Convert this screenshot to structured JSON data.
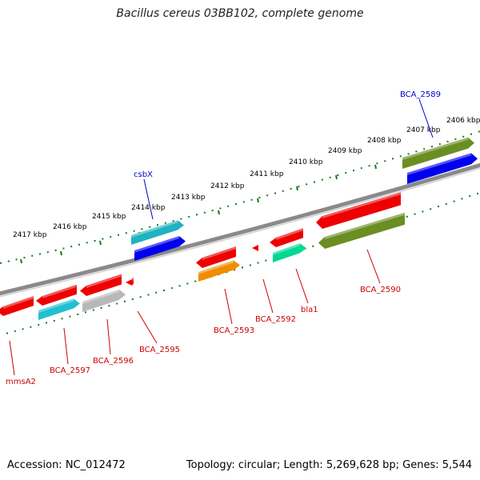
{
  "title": "Bacillus cereus 03BB102, complete genome",
  "footer": {
    "accession": "Accession: NC_012472",
    "summary": "Topology: circular; Length: 5,269,628 bp; Genes: 5,544"
  },
  "colors": {
    "backbone": "#8a8a8a",
    "tick": "#1a7a1a",
    "label_forward": "#0000cc",
    "label_reverse": "#cc0000"
  },
  "ticks": [
    "2406 kbp",
    "2407 kbp",
    "2408 kbp",
    "2409 kbp",
    "2410 kbp",
    "2411 kbp",
    "2412 kbp",
    "2413 kbp",
    "2414 kbp",
    "2415 kbp",
    "2416 kbp",
    "2417 kbp"
  ],
  "gene_labels": [
    {
      "name": "BCA_2589",
      "strand": "forward"
    },
    {
      "name": "csbX",
      "strand": "forward"
    },
    {
      "name": "BCA_2590",
      "strand": "reverse"
    },
    {
      "name": "bla1",
      "strand": "reverse"
    },
    {
      "name": "BCA_2592",
      "strand": "reverse"
    },
    {
      "name": "BCA_2593",
      "strand": "reverse"
    },
    {
      "name": "BCA_2595",
      "strand": "reverse"
    },
    {
      "name": "BCA_2596",
      "strand": "reverse"
    },
    {
      "name": "BCA_2597",
      "strand": "reverse"
    },
    {
      "name": "mmsA2",
      "strand": "reverse"
    }
  ],
  "features": [
    {
      "name": "forward-gene-bca2589",
      "color": "#6b8e23"
    },
    {
      "name": "forward-cds-bca2589",
      "color": "#0000ee"
    },
    {
      "name": "forward-gene-csbx",
      "color": "#20b2c0"
    },
    {
      "name": "forward-cds-csbx",
      "color": "#0000ee"
    },
    {
      "name": "reverse-gene-bca2590",
      "color": "#ee0000"
    },
    {
      "name": "reverse-cds-bca2590",
      "color": "#6b8e23"
    },
    {
      "name": "reverse-gene-bla1",
      "color": "#ee0000"
    },
    {
      "name": "reverse-cds-bla1",
      "color": "#00d890"
    },
    {
      "name": "reverse-gene-bca2592",
      "color": "#ee0000"
    },
    {
      "name": "reverse-gene-bca2593",
      "color": "#ee0000"
    },
    {
      "name": "reverse-cds-bca2593",
      "color": "#f08c00"
    },
    {
      "name": "reverse-gene-bca2595",
      "color": "#ee0000"
    },
    {
      "name": "reverse-gene-bca2596",
      "color": "#ee0000"
    },
    {
      "name": "reverse-cds-bca2596",
      "color": "#b8b8b8"
    },
    {
      "name": "reverse-gene-bca2597",
      "color": "#ee0000"
    },
    {
      "name": "reverse-cds-bca2597",
      "color": "#20c0d0"
    },
    {
      "name": "reverse-gene-mmsa2",
      "color": "#ee0000"
    }
  ]
}
